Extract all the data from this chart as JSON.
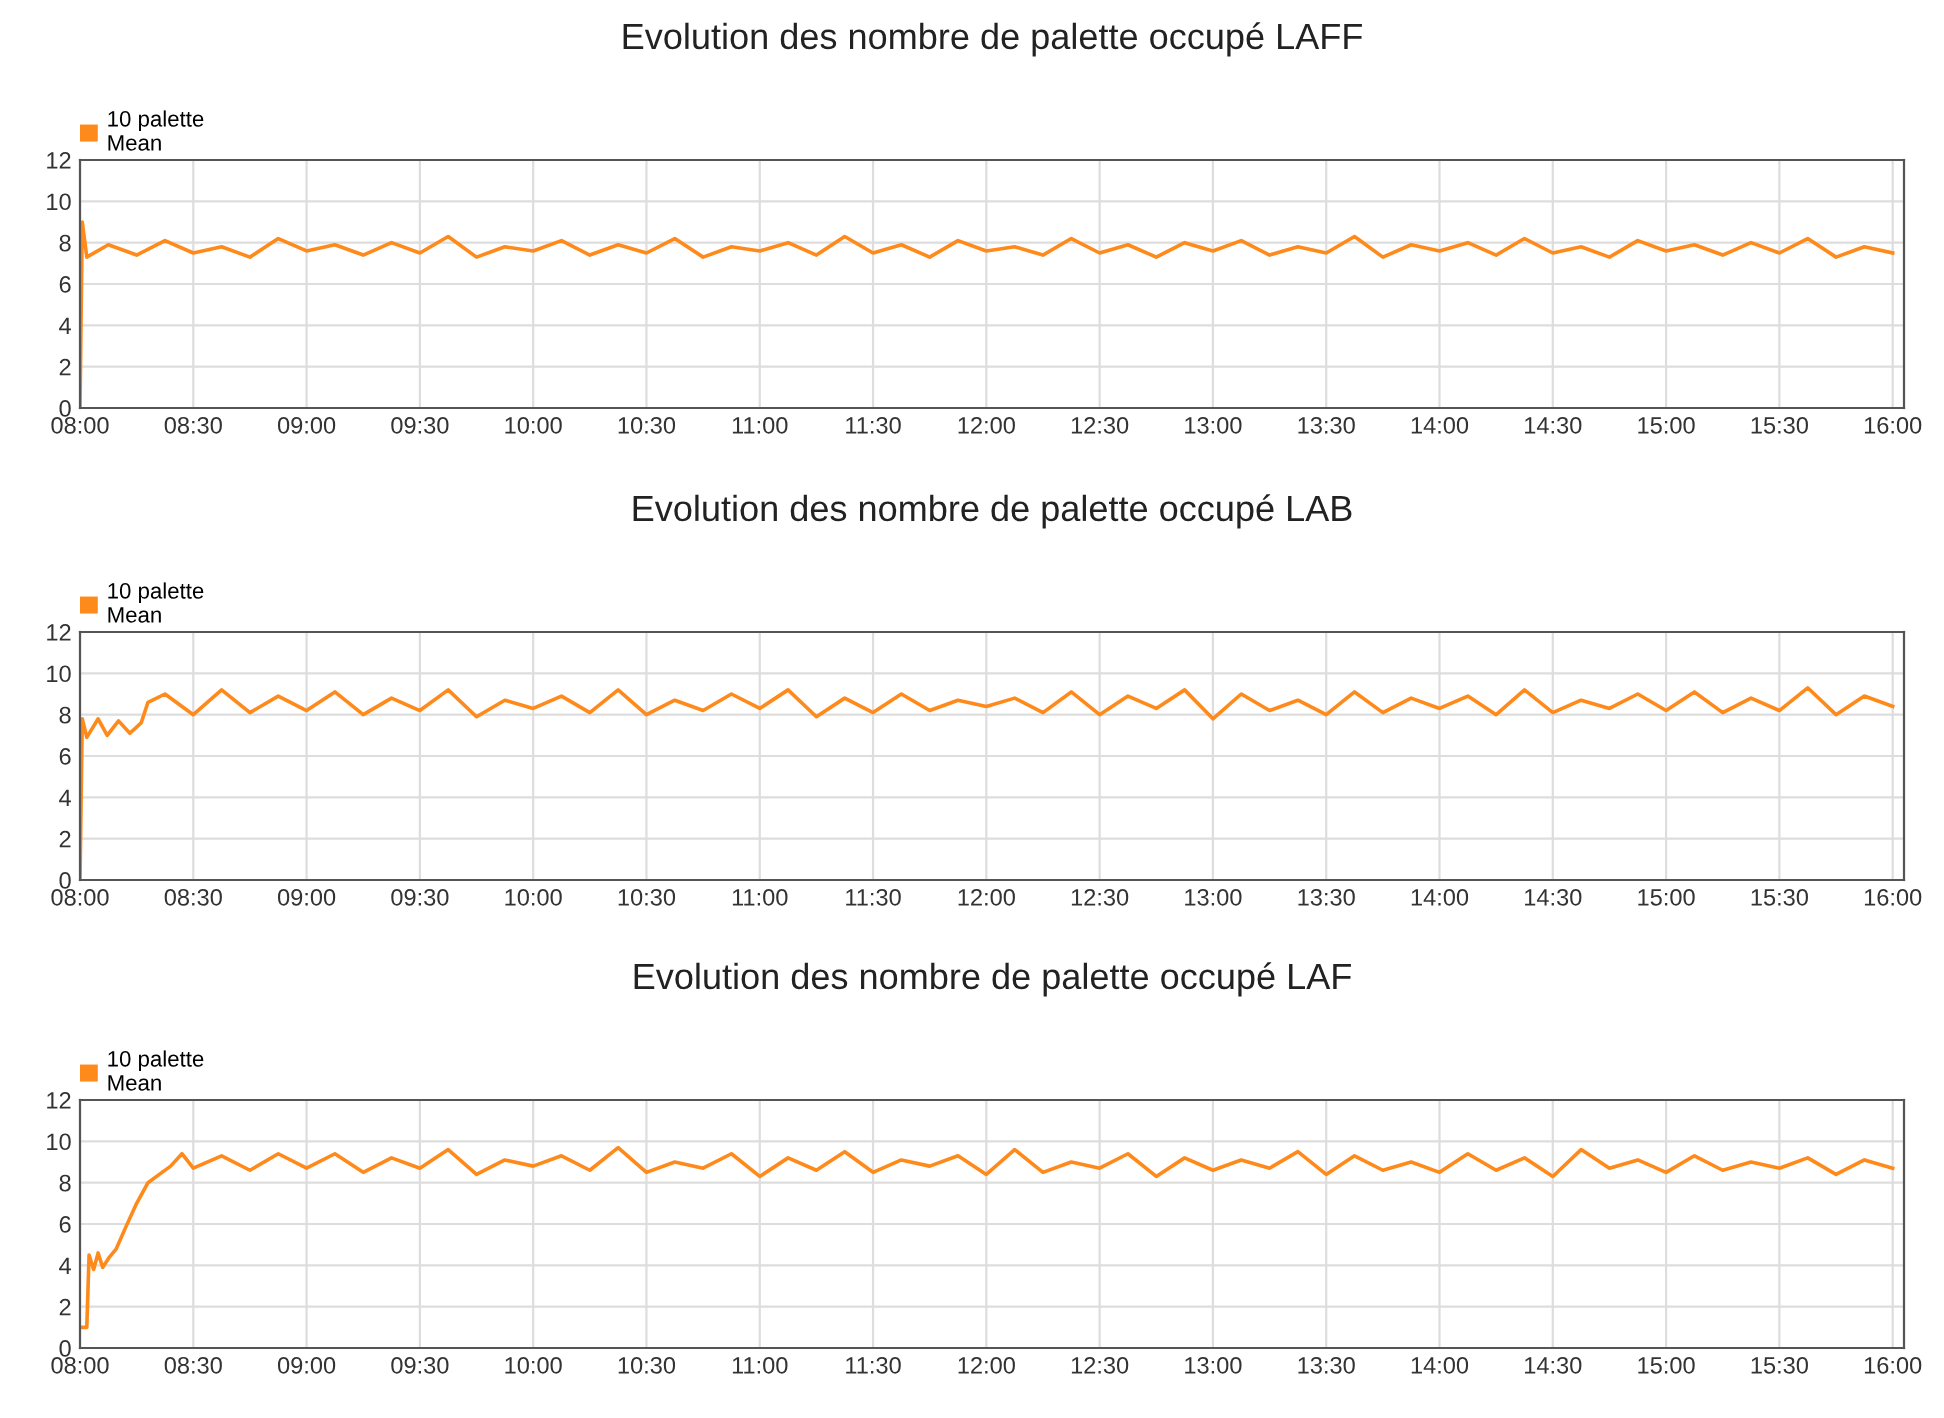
{
  "chart_data": [
    {
      "type": "line",
      "title": "Evolution des nombre de palette occupé LAFF",
      "legend": "top left",
      "grid": true,
      "xlim": [
        8,
        16.05
      ],
      "ylim": [
        0,
        12
      ],
      "yticks": [
        0,
        2,
        4,
        6,
        8,
        10,
        12
      ],
      "xticks": [
        {
          "value": 8,
          "label": "08:00"
        },
        {
          "value": 8.5,
          "label": "08:30"
        },
        {
          "value": 9,
          "label": "09:00"
        },
        {
          "value": 9.5,
          "label": "09:30"
        },
        {
          "value": 10,
          "label": "10:00"
        },
        {
          "value": 10.5,
          "label": "10:30"
        },
        {
          "value": 11,
          "label": "11:00"
        },
        {
          "value": 11.5,
          "label": "11:30"
        },
        {
          "value": 12,
          "label": "12:00"
        },
        {
          "value": 12.5,
          "label": "12:30"
        },
        {
          "value": 13,
          "label": "13:00"
        },
        {
          "value": 13.5,
          "label": "13:30"
        },
        {
          "value": 14,
          "label": "14:00"
        },
        {
          "value": 14.5,
          "label": "14:30"
        },
        {
          "value": 15,
          "label": "15:00"
        },
        {
          "value": 15.5,
          "label": "15:30"
        },
        {
          "value": 16,
          "label": "16:00"
        }
      ],
      "series": [
        {
          "name": "10 palette\nMean",
          "color": "#ff8a1c",
          "x": [
            8.0,
            8.01,
            8.03,
            8.125,
            8.25,
            8.375,
            8.5,
            8.625,
            8.75,
            8.875,
            9.0,
            9.125,
            9.25,
            9.375,
            9.5,
            9.625,
            9.75,
            9.875,
            10.0,
            10.125,
            10.25,
            10.375,
            10.5,
            10.625,
            10.75,
            10.875,
            11.0,
            11.125,
            11.25,
            11.375,
            11.5,
            11.625,
            11.75,
            11.875,
            12.0,
            12.125,
            12.25,
            12.375,
            12.5,
            12.625,
            12.75,
            12.875,
            13.0,
            13.125,
            13.25,
            13.375,
            13.5,
            13.625,
            13.75,
            13.875,
            14.0,
            14.125,
            14.25,
            14.375,
            14.5,
            14.625,
            14.75,
            14.875,
            15.0,
            15.125,
            15.25,
            15.375,
            15.5,
            15.625,
            15.75,
            15.875,
            16.0
          ],
          "values": [
            0,
            9,
            7.3,
            7.9,
            7.4,
            8.1,
            7.5,
            7.8,
            7.3,
            8.2,
            7.6,
            7.9,
            7.4,
            8.0,
            7.5,
            8.3,
            7.3,
            7.8,
            7.6,
            8.1,
            7.4,
            7.9,
            7.5,
            8.2,
            7.3,
            7.8,
            7.6,
            8.0,
            7.4,
            8.3,
            7.5,
            7.9,
            7.3,
            8.1,
            7.6,
            7.8,
            7.4,
            8.2,
            7.5,
            7.9,
            7.3,
            8.0,
            7.6,
            8.1,
            7.4,
            7.8,
            7.5,
            8.3,
            7.3,
            7.9,
            7.6,
            8.0,
            7.4,
            8.2,
            7.5,
            7.8,
            7.3,
            8.1,
            7.6,
            7.9,
            7.4,
            8.0,
            7.5,
            8.2,
            7.3,
            7.8,
            7.5
          ]
        }
      ]
    },
    {
      "type": "line",
      "title": "Evolution des nombre de palette occupé LAB",
      "legend": "top left",
      "grid": true,
      "xlim": [
        8,
        16.05
      ],
      "ylim": [
        0,
        12
      ],
      "yticks": [
        0,
        2,
        4,
        6,
        8,
        10,
        12
      ],
      "xticks": [
        {
          "value": 8,
          "label": "08:00"
        },
        {
          "value": 8.5,
          "label": "08:30"
        },
        {
          "value": 9,
          "label": "09:00"
        },
        {
          "value": 9.5,
          "label": "09:30"
        },
        {
          "value": 10,
          "label": "10:00"
        },
        {
          "value": 10.5,
          "label": "10:30"
        },
        {
          "value": 11,
          "label": "11:00"
        },
        {
          "value": 11.5,
          "label": "11:30"
        },
        {
          "value": 12,
          "label": "12:00"
        },
        {
          "value": 12.5,
          "label": "12:30"
        },
        {
          "value": 13,
          "label": "13:00"
        },
        {
          "value": 13.5,
          "label": "13:30"
        },
        {
          "value": 14,
          "label": "14:00"
        },
        {
          "value": 14.5,
          "label": "14:30"
        },
        {
          "value": 15,
          "label": "15:00"
        },
        {
          "value": 15.5,
          "label": "15:30"
        },
        {
          "value": 16,
          "label": "16:00"
        }
      ],
      "series": [
        {
          "name": "10 palette\nMean",
          "color": "#ff8a1c",
          "x": [
            8.0,
            8.01,
            8.03,
            8.08,
            8.12,
            8.17,
            8.22,
            8.27,
            8.3,
            8.375,
            8.5,
            8.625,
            8.75,
            8.875,
            9.0,
            9.125,
            9.25,
            9.375,
            9.5,
            9.625,
            9.75,
            9.875,
            10.0,
            10.125,
            10.25,
            10.375,
            10.5,
            10.625,
            10.75,
            10.875,
            11.0,
            11.125,
            11.25,
            11.375,
            11.5,
            11.625,
            11.75,
            11.875,
            12.0,
            12.125,
            12.25,
            12.375,
            12.5,
            12.625,
            12.75,
            12.875,
            13.0,
            13.125,
            13.25,
            13.375,
            13.5,
            13.625,
            13.75,
            13.875,
            14.0,
            14.125,
            14.25,
            14.375,
            14.5,
            14.625,
            14.75,
            14.875,
            15.0,
            15.125,
            15.25,
            15.375,
            15.5,
            15.625,
            15.75,
            15.875,
            16.0
          ],
          "values": [
            0,
            7.8,
            6.9,
            7.8,
            7.0,
            7.7,
            7.1,
            7.6,
            8.6,
            9.0,
            8.0,
            9.2,
            8.1,
            8.9,
            8.2,
            9.1,
            8.0,
            8.8,
            8.2,
            9.2,
            7.9,
            8.7,
            8.3,
            8.9,
            8.1,
            9.2,
            8.0,
            8.7,
            8.2,
            9.0,
            8.3,
            9.2,
            7.9,
            8.8,
            8.1,
            9.0,
            8.2,
            8.7,
            8.4,
            8.8,
            8.1,
            9.1,
            8.0,
            8.9,
            8.3,
            9.2,
            7.8,
            9.0,
            8.2,
            8.7,
            8.0,
            9.1,
            8.1,
            8.8,
            8.3,
            8.9,
            8.0,
            9.2,
            8.1,
            8.7,
            8.3,
            9.0,
            8.2,
            9.1,
            8.1,
            8.8,
            8.2,
            9.3,
            8.0,
            8.9,
            8.4
          ]
        }
      ]
    },
    {
      "type": "line",
      "title": "Evolution des nombre de palette occupé LAF",
      "legend": "top left",
      "grid": true,
      "xlim": [
        8,
        16.05
      ],
      "ylim": [
        0,
        12
      ],
      "yticks": [
        0,
        2,
        4,
        6,
        8,
        10,
        12
      ],
      "xticks": [
        {
          "value": 8,
          "label": "08:00"
        },
        {
          "value": 8.5,
          "label": "08:30"
        },
        {
          "value": 9,
          "label": "09:00"
        },
        {
          "value": 9.5,
          "label": "09:30"
        },
        {
          "value": 10,
          "label": "10:00"
        },
        {
          "value": 10.5,
          "label": "10:30"
        },
        {
          "value": 11,
          "label": "11:00"
        },
        {
          "value": 11.5,
          "label": "11:30"
        },
        {
          "value": 12,
          "label": "12:00"
        },
        {
          "value": 12.5,
          "label": "12:30"
        },
        {
          "value": 13,
          "label": "13:00"
        },
        {
          "value": 13.5,
          "label": "13:30"
        },
        {
          "value": 14,
          "label": "14:00"
        },
        {
          "value": 14.5,
          "label": "14:30"
        },
        {
          "value": 15,
          "label": "15:00"
        },
        {
          "value": 15.5,
          "label": "15:30"
        },
        {
          "value": 16,
          "label": "16:00"
        }
      ],
      "series": [
        {
          "name": "10 palette\nMean",
          "color": "#ff8a1c",
          "x": [
            8.0,
            8.03,
            8.04,
            8.06,
            8.08,
            8.1,
            8.13,
            8.16,
            8.2,
            8.25,
            8.3,
            8.35,
            8.4,
            8.45,
            8.5,
            8.625,
            8.75,
            8.875,
            9.0,
            9.125,
            9.25,
            9.375,
            9.5,
            9.625,
            9.75,
            9.875,
            10.0,
            10.125,
            10.25,
            10.375,
            10.5,
            10.625,
            10.75,
            10.875,
            11.0,
            11.125,
            11.25,
            11.375,
            11.5,
            11.625,
            11.75,
            11.875,
            12.0,
            12.125,
            12.25,
            12.375,
            12.5,
            12.625,
            12.75,
            12.875,
            13.0,
            13.125,
            13.25,
            13.375,
            13.5,
            13.625,
            13.75,
            13.875,
            14.0,
            14.125,
            14.25,
            14.375,
            14.5,
            14.625,
            14.75,
            14.875,
            15.0,
            15.125,
            15.25,
            15.375,
            15.5,
            15.625,
            15.75,
            15.875,
            16.0
          ],
          "values": [
            1,
            1,
            4.5,
            3.8,
            4.6,
            3.9,
            4.4,
            4.8,
            5.8,
            7.0,
            8.0,
            8.4,
            8.8,
            9.4,
            8.7,
            9.3,
            8.6,
            9.4,
            8.7,
            9.4,
            8.5,
            9.2,
            8.7,
            9.6,
            8.4,
            9.1,
            8.8,
            9.3,
            8.6,
            9.7,
            8.5,
            9.0,
            8.7,
            9.4,
            8.3,
            9.2,
            8.6,
            9.5,
            8.5,
            9.1,
            8.8,
            9.3,
            8.4,
            9.6,
            8.5,
            9.0,
            8.7,
            9.4,
            8.3,
            9.2,
            8.6,
            9.1,
            8.7,
            9.5,
            8.4,
            9.3,
            8.6,
            9.0,
            8.5,
            9.4,
            8.6,
            9.2,
            8.3,
            9.6,
            8.7,
            9.1,
            8.5,
            9.3,
            8.6,
            9.0,
            8.7,
            9.2,
            8.4,
            9.1,
            8.7
          ]
        }
      ]
    }
  ]
}
